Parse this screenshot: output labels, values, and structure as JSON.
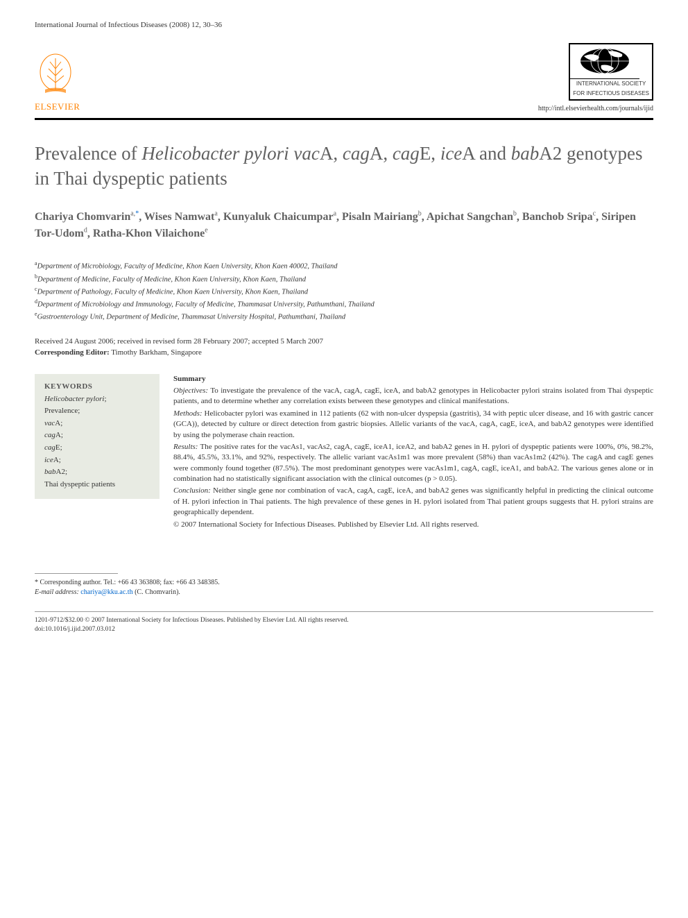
{
  "header": {
    "journal_ref": "International Journal of Infectious Diseases (2008) 12, 30–36",
    "elsevier_label": "ELSEVIER",
    "isid_line1": "INTERNATIONAL SOCIETY",
    "isid_line2": "FOR INFECTIOUS DISEASES",
    "journal_url": "http://intl.elsevierhealth.com/journals/ijid"
  },
  "title": {
    "prefix": "Prevalence of ",
    "italic1": "Helicobacter pylori vac",
    "plain1": "A, ",
    "italic2": "cag",
    "plain2": "A, ",
    "italic3": "cag",
    "plain3": "E, ",
    "italic4": "ice",
    "plain4": "A and ",
    "italic5": "bab",
    "plain5": "A2 genotypes in Thai dyspeptic patients"
  },
  "authors": [
    {
      "name": "Chariya Chomvarin",
      "sup": "a,",
      "corr": "*"
    },
    {
      "name": "Wises Namwat",
      "sup": "a"
    },
    {
      "name": "Kunyaluk Chaicumpar",
      "sup": "a"
    },
    {
      "name": "Pisaln Mairiang",
      "sup": "b"
    },
    {
      "name": "Apichat Sangchan",
      "sup": "b"
    },
    {
      "name": "Banchob Sripa",
      "sup": "c"
    },
    {
      "name": "Siripen Tor-Udom",
      "sup": "d"
    },
    {
      "name": "Ratha-Khon Vilaichone",
      "sup": "e"
    }
  ],
  "affiliations": [
    {
      "sup": "a",
      "text": "Department of Microbiology, Faculty of Medicine, Khon Kaen University, Khon Kaen 40002, Thailand"
    },
    {
      "sup": "b",
      "text": "Department of Medicine, Faculty of Medicine, Khon Kaen University, Khon Kaen, Thailand"
    },
    {
      "sup": "c",
      "text": "Department of Pathology, Faculty of Medicine, Khon Kaen University, Khon Kaen, Thailand"
    },
    {
      "sup": "d",
      "text": "Department of Microbiology and Immunology, Faculty of Medicine, Thammasat University, Pathumthani, Thailand"
    },
    {
      "sup": "e",
      "text": "Gastroenterology Unit, Department of Medicine, Thammasat University Hospital, Pathumthani, Thailand"
    }
  ],
  "dates": "Received 24 August 2006; received in revised form 28 February 2007; accepted 5 March 2007",
  "corr_editor_label": "Corresponding Editor:",
  "corr_editor_name": " Timothy Barkham, Singapore",
  "keywords": {
    "heading": "KEYWORDS",
    "items": [
      {
        "italic": "Helicobacter pylori",
        "plain": ";"
      },
      {
        "plain": "Prevalence;"
      },
      {
        "italic": "vac",
        "plain": "A;"
      },
      {
        "italic": "cag",
        "plain": "A;"
      },
      {
        "italic": "cag",
        "plain": "E;"
      },
      {
        "italic": "ice",
        "plain": "A;"
      },
      {
        "italic": "bab",
        "plain": "A2;"
      },
      {
        "plain": "Thai dyspeptic patients"
      }
    ]
  },
  "summary": {
    "heading": "Summary",
    "objectives_label": "Objectives:",
    "objectives": " To investigate the prevalence of the vacA, cagA, cagE, iceA, and babA2 genotypes in Helicobacter pylori strains isolated from Thai dyspeptic patients, and to determine whether any correlation exists between these genotypes and clinical manifestations.",
    "methods_label": "Methods:",
    "methods": " Helicobacter pylori was examined in 112 patients (62 with non-ulcer dyspepsia (gastritis), 34 with peptic ulcer disease, and 16 with gastric cancer (GCA)), detected by culture or direct detection from gastric biopsies. Allelic variants of the vacA, cagA, cagE, iceA, and babA2 genotypes were identified by using the polymerase chain reaction.",
    "results_label": "Results:",
    "results": " The positive rates for the vacAs1, vacAs2, cagA, cagE, iceA1, iceA2, and babA2 genes in H. pylori of dyspeptic patients were 100%, 0%, 98.2%, 88.4%, 45.5%, 33.1%, and 92%, respectively. The allelic variant vacAs1m1 was more prevalent (58%) than vacAs1m2 (42%). The cagA and cagE genes were commonly found together (87.5%). The most predominant genotypes were vacAs1m1, cagA, cagE, iceA1, and babA2. The various genes alone or in combination had no statistically significant association with the clinical outcomes (p > 0.05).",
    "conclusion_label": "Conclusion:",
    "conclusion": " Neither single gene nor combination of vacA, cagA, cagE, iceA, and babA2 genes was significantly helpful in predicting the clinical outcome of H. pylori infection in Thai patients. The high prevalence of these genes in H. pylori isolated from Thai patient groups suggests that H. pylori strains are geographically dependent.",
    "copyright": "© 2007 International Society for Infectious Diseases. Published by Elsevier Ltd. All rights reserved."
  },
  "corr_author": {
    "line1": "* Corresponding author. Tel.: +66 43 363808; fax: +66 43 348385.",
    "email_label": "E-mail address:",
    "email": "chariya@kku.ac.th",
    "email_suffix": " (C. Chomvarin)."
  },
  "footer": {
    "copyright": "1201-9712/$32.00 © 2007 International Society for Infectious Diseases. Published by Elsevier Ltd. All rights reserved.",
    "doi": "doi:10.1016/j.ijid.2007.03.012"
  },
  "colors": {
    "title_color": "#606060",
    "keyword_bg": "#e8ebe3",
    "elsevier_orange": "#ff8200",
    "link_blue": "#0066cc"
  }
}
